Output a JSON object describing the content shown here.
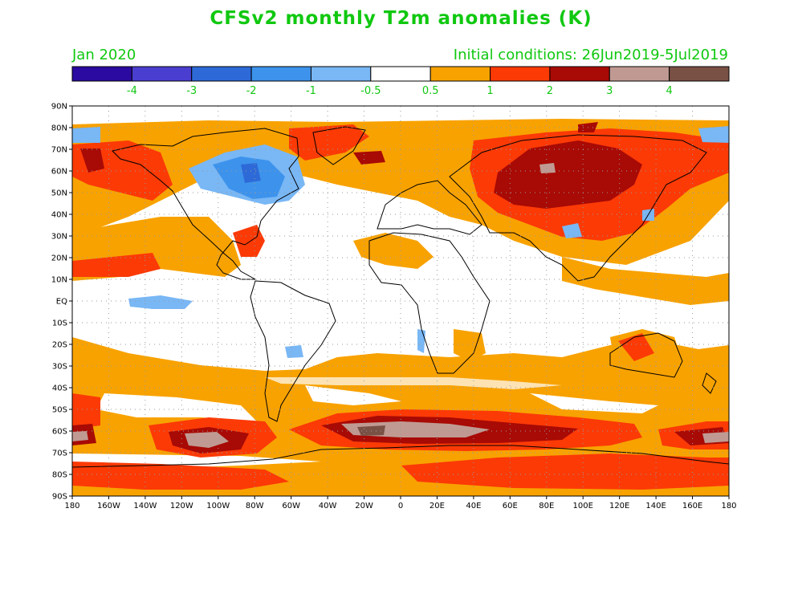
{
  "header": {
    "title": "CFSv2 monthly T2m anomalies (K)",
    "month": "Jan 2020",
    "init": "Initial conditions: 26Jun2019-5Jul2019"
  },
  "colorbar": {
    "colors": [
      "#2a0aa0",
      "#4a3ed0",
      "#2d6ad8",
      "#3d93ec",
      "#79b7f5",
      "#ffffff",
      "#f8a200",
      "#fb3a06",
      "#a80a05",
      "#c09a92",
      "#7a5145"
    ],
    "labels": [
      "-4",
      "-3",
      "-2",
      "-1",
      "-0.5",
      "0.5",
      "1",
      "2",
      "3",
      "4"
    ]
  },
  "axes": {
    "lat_labels": [
      "90N",
      "80N",
      "70N",
      "60N",
      "50N",
      "40N",
      "30N",
      "20N",
      "10N",
      "EQ",
      "10S",
      "20S",
      "30S",
      "40S",
      "50S",
      "60S",
      "70S",
      "80S",
      "90S"
    ],
    "lon_labels": [
      "180",
      "160W",
      "140W",
      "120W",
      "100W",
      "80W",
      "60W",
      "40W",
      "20W",
      "0",
      "20E",
      "40E",
      "60E",
      "80E",
      "100E",
      "120E",
      "140E",
      "160E",
      "180"
    ]
  },
  "map_data": {
    "projection": "equirectangular",
    "lon_range": [
      -180,
      180
    ],
    "lat_range": [
      -90,
      90
    ],
    "grid": "dotted every 20 deg lon / 10 deg lat"
  }
}
